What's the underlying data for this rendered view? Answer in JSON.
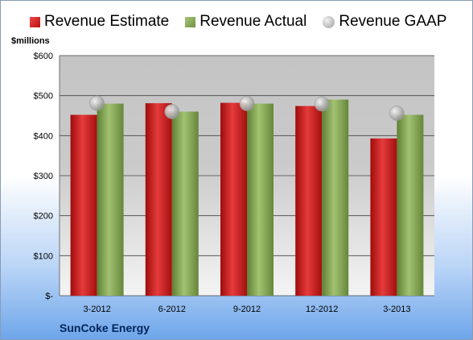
{
  "company": "SunCoke Energy",
  "unit_label": "$millions",
  "legend": [
    "Revenue Estimate",
    "Revenue Actual",
    "Revenue GAAP"
  ],
  "colors": {
    "estimate": "#d11f1f",
    "actual": "#8cae5a",
    "gaap": "#c4c4c4"
  },
  "chart_data": {
    "type": "bar",
    "categories": [
      "3-2012",
      "6-2012",
      "9-2012",
      "12-2012",
      "3-2013"
    ],
    "series": [
      {
        "name": "Revenue Estimate",
        "values": [
          452,
          481,
          482,
          474,
          393
        ]
      },
      {
        "name": "Revenue Actual",
        "values": [
          480,
          460,
          480,
          490,
          452
        ]
      },
      {
        "name": "Revenue GAAP",
        "values": [
          481,
          460,
          480,
          479,
          456
        ],
        "marker": "circle"
      }
    ],
    "ylabel": "$millions",
    "ylim": [
      0,
      600
    ],
    "yticks": [
      0,
      100,
      200,
      300,
      400,
      500,
      600
    ],
    "ytick_labels": [
      "$-",
      "$100",
      "$200",
      "$300",
      "$400",
      "$500",
      "$600"
    ],
    "grid": true,
    "legend_position": "top"
  }
}
